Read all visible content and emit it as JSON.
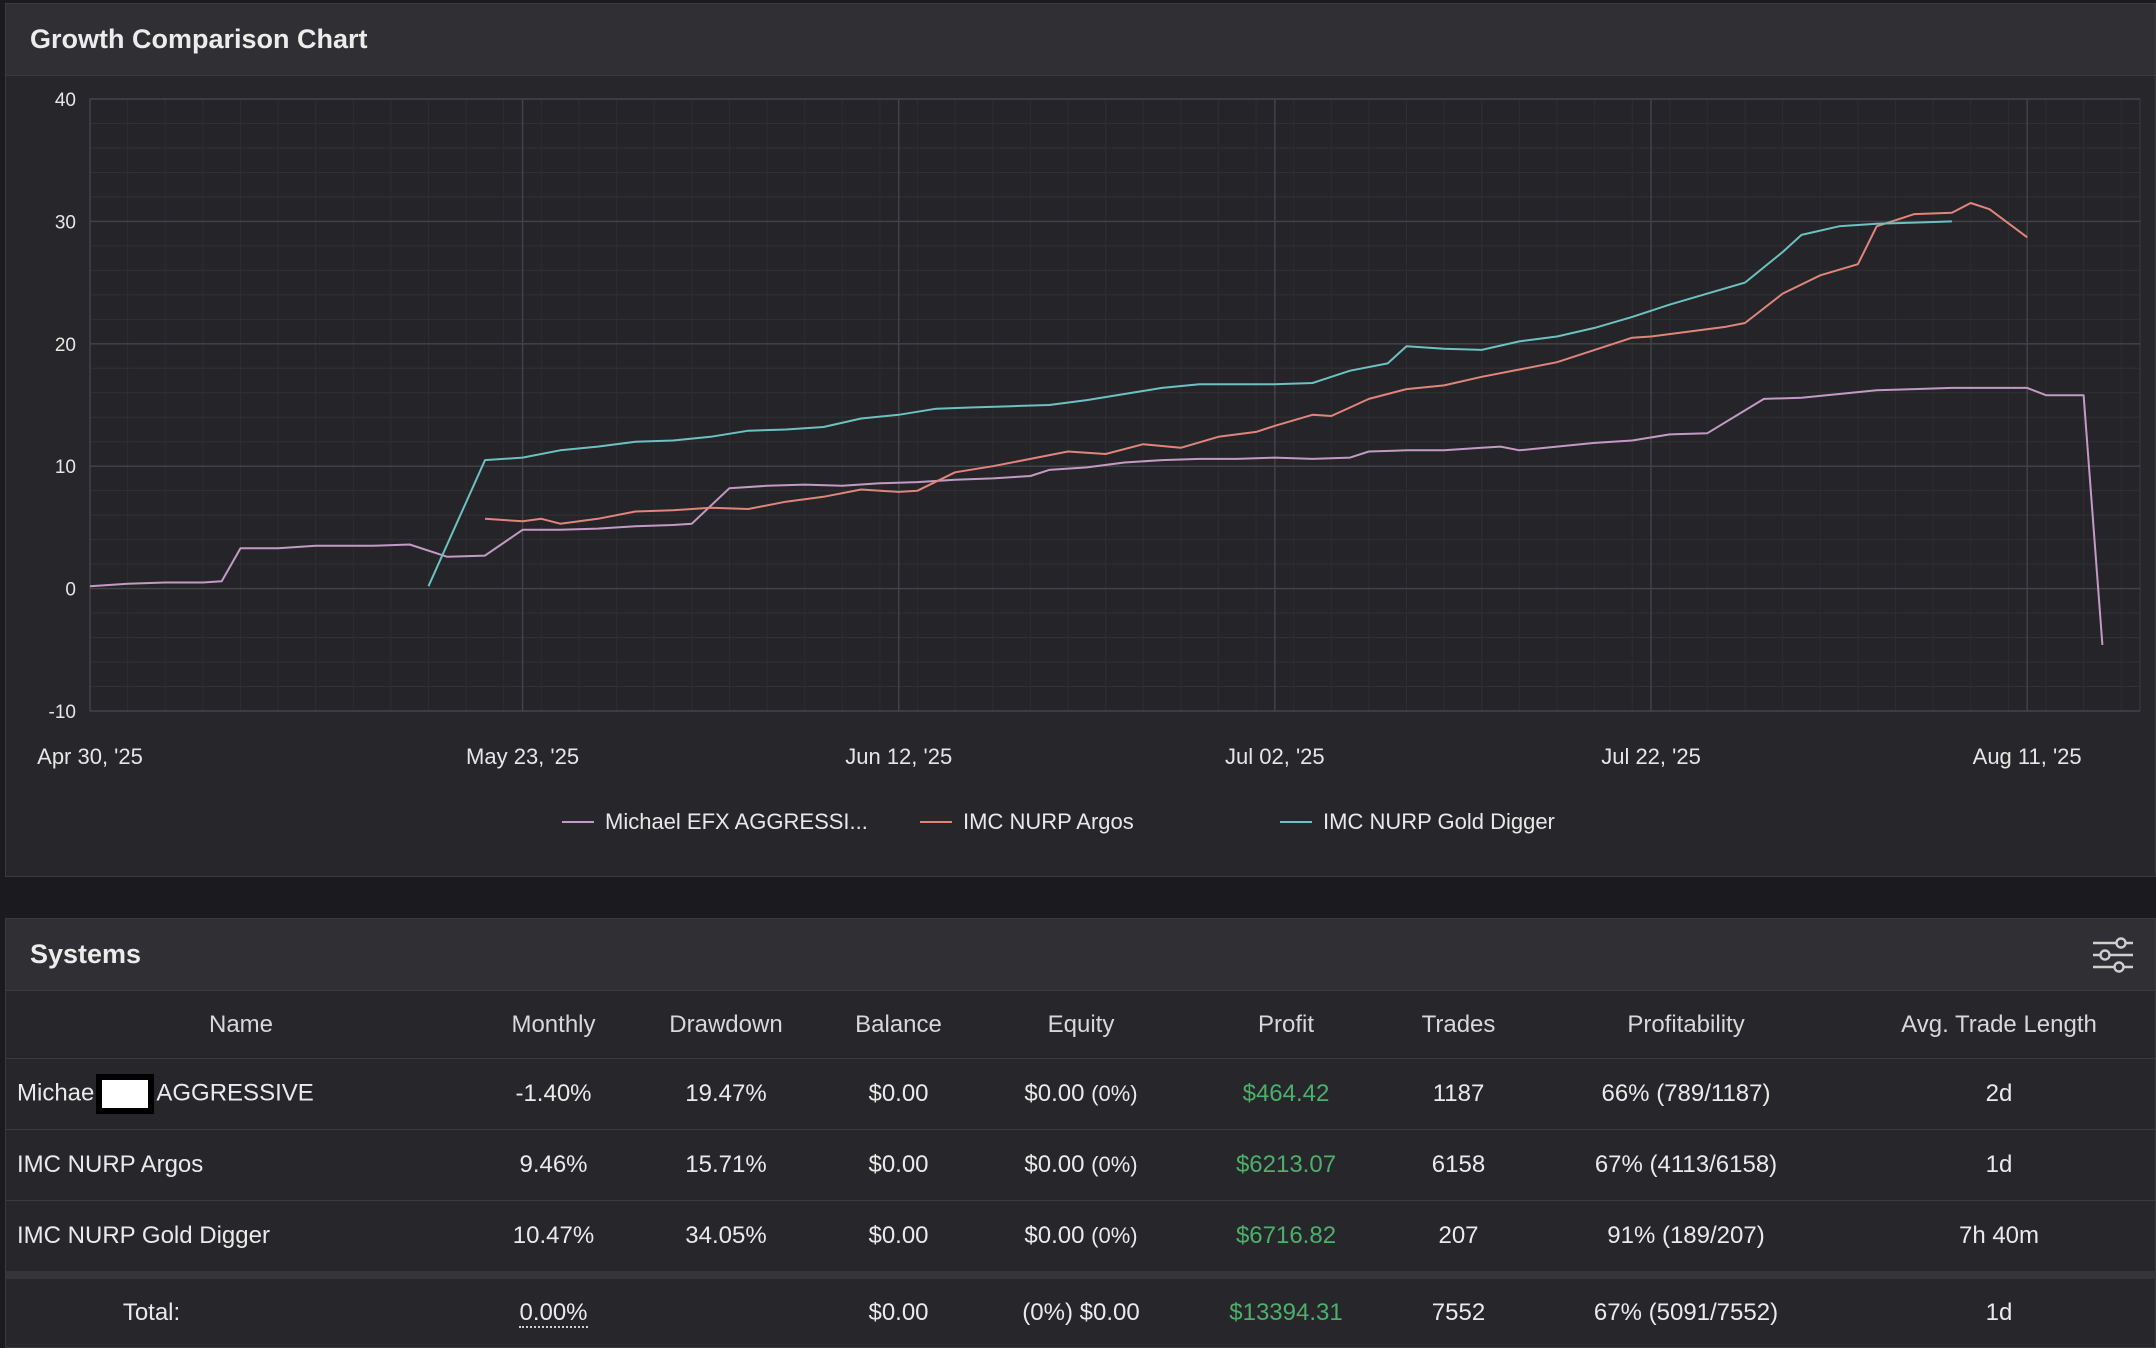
{
  "chart_panel": {
    "title": "Growth Comparison Chart"
  },
  "chart_data": {
    "type": "line",
    "xlabel": "",
    "ylabel": "",
    "ylim": [
      -10,
      40
    ],
    "yticks": [
      -10,
      0,
      10,
      20,
      30,
      40
    ],
    "xlim": [
      "2025-04-30",
      "2025-08-17"
    ],
    "xticks": [
      {
        "date": "2025-04-30",
        "label": "Apr 30, '25"
      },
      {
        "date": "2025-05-23",
        "label": "May 23, '25"
      },
      {
        "date": "2025-06-12",
        "label": "Jun 12, '25"
      },
      {
        "date": "2025-07-02",
        "label": "Jul 02, '25"
      },
      {
        "date": "2025-07-22",
        "label": "Jul 22, '25"
      },
      {
        "date": "2025-08-11",
        "label": "Aug 11, '25"
      }
    ],
    "grid": true,
    "legend_position": "bottom",
    "series": [
      {
        "name": "Michael EFX AGGRESSI...",
        "color": "#c49ac4",
        "points": [
          [
            "2025-04-30",
            0.2
          ],
          [
            "2025-05-02",
            0.4
          ],
          [
            "2025-05-04",
            0.5
          ],
          [
            "2025-05-06",
            0.5
          ],
          [
            "2025-05-07",
            0.6
          ],
          [
            "2025-05-08",
            3.3
          ],
          [
            "2025-05-10",
            3.3
          ],
          [
            "2025-05-12",
            3.5
          ],
          [
            "2025-05-15",
            3.5
          ],
          [
            "2025-05-17",
            3.6
          ],
          [
            "2025-05-19",
            2.6
          ],
          [
            "2025-05-21",
            2.7
          ],
          [
            "2025-05-23",
            4.8
          ],
          [
            "2025-05-25",
            4.8
          ],
          [
            "2025-05-27",
            4.9
          ],
          [
            "2025-05-29",
            5.1
          ],
          [
            "2025-05-31",
            5.2
          ],
          [
            "2025-06-01",
            5.3
          ],
          [
            "2025-06-03",
            8.2
          ],
          [
            "2025-06-05",
            8.4
          ],
          [
            "2025-06-07",
            8.5
          ],
          [
            "2025-06-09",
            8.4
          ],
          [
            "2025-06-11",
            8.6
          ],
          [
            "2025-06-13",
            8.7
          ],
          [
            "2025-06-15",
            8.9
          ],
          [
            "2025-06-17",
            9.0
          ],
          [
            "2025-06-19",
            9.2
          ],
          [
            "2025-06-20",
            9.7
          ],
          [
            "2025-06-22",
            9.9
          ],
          [
            "2025-06-24",
            10.3
          ],
          [
            "2025-06-26",
            10.5
          ],
          [
            "2025-06-28",
            10.6
          ],
          [
            "2025-06-30",
            10.6
          ],
          [
            "2025-07-02",
            10.7
          ],
          [
            "2025-07-04",
            10.6
          ],
          [
            "2025-07-06",
            10.7
          ],
          [
            "2025-07-07",
            11.2
          ],
          [
            "2025-07-09",
            11.3
          ],
          [
            "2025-07-11",
            11.3
          ],
          [
            "2025-07-13",
            11.5
          ],
          [
            "2025-07-14",
            11.6
          ],
          [
            "2025-07-15",
            11.3
          ],
          [
            "2025-07-17",
            11.6
          ],
          [
            "2025-07-19",
            11.9
          ],
          [
            "2025-07-21",
            12.1
          ],
          [
            "2025-07-23",
            12.6
          ],
          [
            "2025-07-25",
            12.7
          ],
          [
            "2025-07-28",
            15.5
          ],
          [
            "2025-07-30",
            15.6
          ],
          [
            "2025-08-01",
            15.9
          ],
          [
            "2025-08-03",
            16.2
          ],
          [
            "2025-08-05",
            16.3
          ],
          [
            "2025-08-07",
            16.4
          ],
          [
            "2025-08-09",
            16.4
          ],
          [
            "2025-08-11",
            16.4
          ],
          [
            "2025-08-12",
            15.8
          ],
          [
            "2025-08-14",
            15.8
          ],
          [
            "2025-08-15",
            -4.6
          ]
        ]
      },
      {
        "name": "IMC NURP Argos",
        "color": "#e0857b",
        "points": [
          [
            "2025-05-21",
            5.7
          ],
          [
            "2025-05-23",
            5.5
          ],
          [
            "2025-05-24",
            5.7
          ],
          [
            "2025-05-25",
            5.3
          ],
          [
            "2025-05-27",
            5.7
          ],
          [
            "2025-05-29",
            6.3
          ],
          [
            "2025-05-31",
            6.4
          ],
          [
            "2025-06-02",
            6.6
          ],
          [
            "2025-06-04",
            6.5
          ],
          [
            "2025-06-06",
            7.1
          ],
          [
            "2025-06-08",
            7.5
          ],
          [
            "2025-06-10",
            8.1
          ],
          [
            "2025-06-12",
            7.9
          ],
          [
            "2025-06-13",
            8.0
          ],
          [
            "2025-06-15",
            9.5
          ],
          [
            "2025-06-17",
            10.0
          ],
          [
            "2025-06-19",
            10.6
          ],
          [
            "2025-06-21",
            11.2
          ],
          [
            "2025-06-23",
            11.0
          ],
          [
            "2025-06-25",
            11.8
          ],
          [
            "2025-06-27",
            11.5
          ],
          [
            "2025-06-29",
            12.4
          ],
          [
            "2025-07-01",
            12.8
          ],
          [
            "2025-07-02",
            13.3
          ],
          [
            "2025-07-04",
            14.2
          ],
          [
            "2025-07-05",
            14.1
          ],
          [
            "2025-07-07",
            15.5
          ],
          [
            "2025-07-09",
            16.3
          ],
          [
            "2025-07-11",
            16.6
          ],
          [
            "2025-07-13",
            17.3
          ],
          [
            "2025-07-15",
            17.9
          ],
          [
            "2025-07-17",
            18.5
          ],
          [
            "2025-07-19",
            19.5
          ],
          [
            "2025-07-21",
            20.5
          ],
          [
            "2025-07-22",
            20.6
          ],
          [
            "2025-07-24",
            21.0
          ],
          [
            "2025-07-26",
            21.4
          ],
          [
            "2025-07-27",
            21.7
          ],
          [
            "2025-07-29",
            24.1
          ],
          [
            "2025-07-31",
            25.6
          ],
          [
            "2025-08-02",
            26.5
          ],
          [
            "2025-08-03",
            29.6
          ],
          [
            "2025-08-05",
            30.6
          ],
          [
            "2025-08-07",
            30.7
          ],
          [
            "2025-08-08",
            31.5
          ],
          [
            "2025-08-09",
            31.0
          ],
          [
            "2025-08-11",
            28.7
          ]
        ]
      },
      {
        "name": "IMC NURP Gold Digger",
        "color": "#6cc1c1",
        "points": [
          [
            "2025-05-18",
            0.2
          ],
          [
            "2025-05-21",
            10.5
          ],
          [
            "2025-05-23",
            10.7
          ],
          [
            "2025-05-25",
            11.3
          ],
          [
            "2025-05-27",
            11.6
          ],
          [
            "2025-05-29",
            12.0
          ],
          [
            "2025-05-31",
            12.1
          ],
          [
            "2025-06-02",
            12.4
          ],
          [
            "2025-06-04",
            12.9
          ],
          [
            "2025-06-06",
            13.0
          ],
          [
            "2025-06-08",
            13.2
          ],
          [
            "2025-06-10",
            13.9
          ],
          [
            "2025-06-12",
            14.2
          ],
          [
            "2025-06-14",
            14.7
          ],
          [
            "2025-06-16",
            14.8
          ],
          [
            "2025-06-18",
            14.9
          ],
          [
            "2025-06-20",
            15.0
          ],
          [
            "2025-06-22",
            15.4
          ],
          [
            "2025-06-24",
            15.9
          ],
          [
            "2025-06-26",
            16.4
          ],
          [
            "2025-06-28",
            16.7
          ],
          [
            "2025-06-30",
            16.7
          ],
          [
            "2025-07-02",
            16.7
          ],
          [
            "2025-07-04",
            16.8
          ],
          [
            "2025-07-06",
            17.8
          ],
          [
            "2025-07-08",
            18.4
          ],
          [
            "2025-07-09",
            19.8
          ],
          [
            "2025-07-11",
            19.6
          ],
          [
            "2025-07-13",
            19.5
          ],
          [
            "2025-07-15",
            20.2
          ],
          [
            "2025-07-17",
            20.6
          ],
          [
            "2025-07-19",
            21.3
          ],
          [
            "2025-07-21",
            22.2
          ],
          [
            "2025-07-23",
            23.2
          ],
          [
            "2025-07-25",
            24.1
          ],
          [
            "2025-07-27",
            25.0
          ],
          [
            "2025-07-29",
            27.5
          ],
          [
            "2025-07-30",
            28.9
          ],
          [
            "2025-08-01",
            29.6
          ],
          [
            "2025-08-03",
            29.8
          ],
          [
            "2025-08-05",
            29.9
          ],
          [
            "2025-08-07",
            30.0
          ]
        ]
      }
    ]
  },
  "systems_panel": {
    "title": "Systems",
    "settings_icon": "sliders-icon",
    "columns": [
      "Name",
      "Monthly",
      "Drawdown",
      "Balance",
      "Equity",
      "Profit",
      "Trades",
      "Profitability",
      "Avg. Trade Length"
    ],
    "rows": [
      {
        "name_prefix": "Michae",
        "name_suffix": "AGGRESSIVE",
        "monthly": "-1.40%",
        "drawdown": "19.47%",
        "balance": "$0.00",
        "equity": "$0.00",
        "equity_pct": "(0%)",
        "profit": "$464.42",
        "trades": "1187",
        "profitability": "66% (789/1187)",
        "avg_length": "2d"
      },
      {
        "name": "IMC NURP Argos",
        "monthly": "9.46%",
        "drawdown": "15.71%",
        "balance": "$0.00",
        "equity": "$0.00",
        "equity_pct": "(0%)",
        "profit": "$6213.07",
        "trades": "6158",
        "profitability": "67% (4113/6158)",
        "avg_length": "1d"
      },
      {
        "name": "IMC NURP Gold Digger",
        "monthly": "10.47%",
        "drawdown": "34.05%",
        "balance": "$0.00",
        "equity": "$0.00",
        "equity_pct": "(0%)",
        "profit": "$6716.82",
        "trades": "207",
        "profitability": "91% (189/207)",
        "avg_length": "7h 40m"
      }
    ],
    "total": {
      "label": "Total:",
      "monthly": "0.00%",
      "balance": "$0.00",
      "equity": "(0%) $0.00",
      "profit": "$13394.31",
      "trades": "7552",
      "profitability": "67% (5091/7552)",
      "avg_length": "1d"
    }
  }
}
